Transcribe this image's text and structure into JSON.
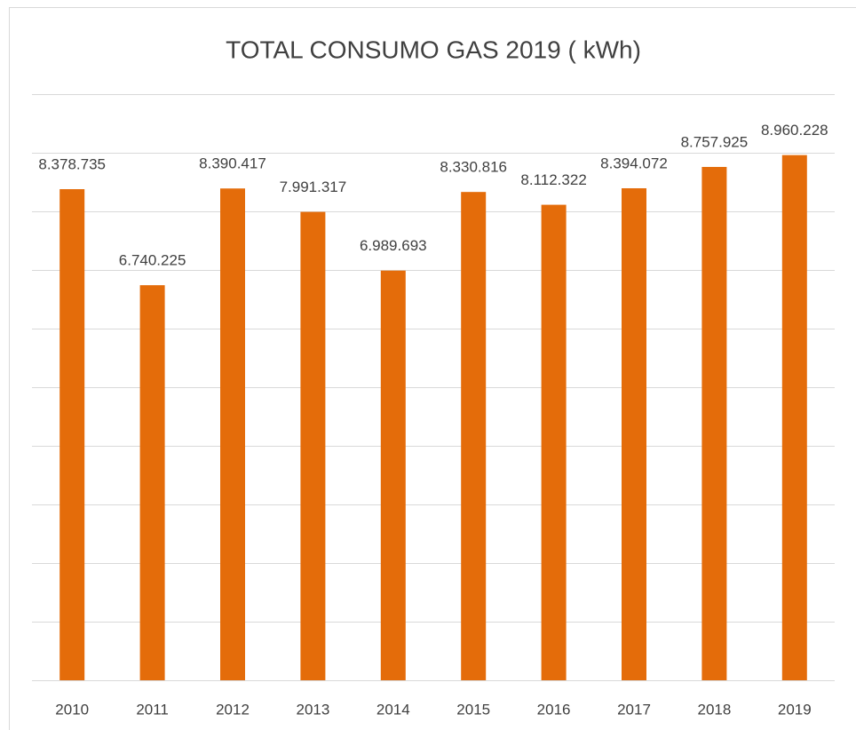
{
  "chart_data": {
    "type": "bar",
    "title": "TOTAL CONSUMO  GAS 2019 ( kWh)",
    "categories": [
      "2010",
      "2011",
      "2012",
      "2013",
      "2014",
      "2015",
      "2016",
      "2017",
      "2018",
      "2019"
    ],
    "values": [
      8378735,
      6740225,
      8390417,
      7991317,
      6989693,
      8330816,
      8112322,
      8394072,
      8757925,
      8960228
    ],
    "value_labels": [
      "8.378.735",
      "6.740.225",
      "8.390.417",
      "7.991.317",
      "6.989.693",
      "8.330.816",
      "8.112.322",
      "8.394.072",
      "8.757.925",
      "8.960.228"
    ],
    "color": "#e46c0a",
    "ylim": [
      0,
      10000000
    ],
    "yticks": [
      0,
      1000000,
      2000000,
      3000000,
      4000000,
      5000000,
      6000000,
      7000000,
      8000000,
      9000000,
      10000000
    ],
    "grid": true
  }
}
